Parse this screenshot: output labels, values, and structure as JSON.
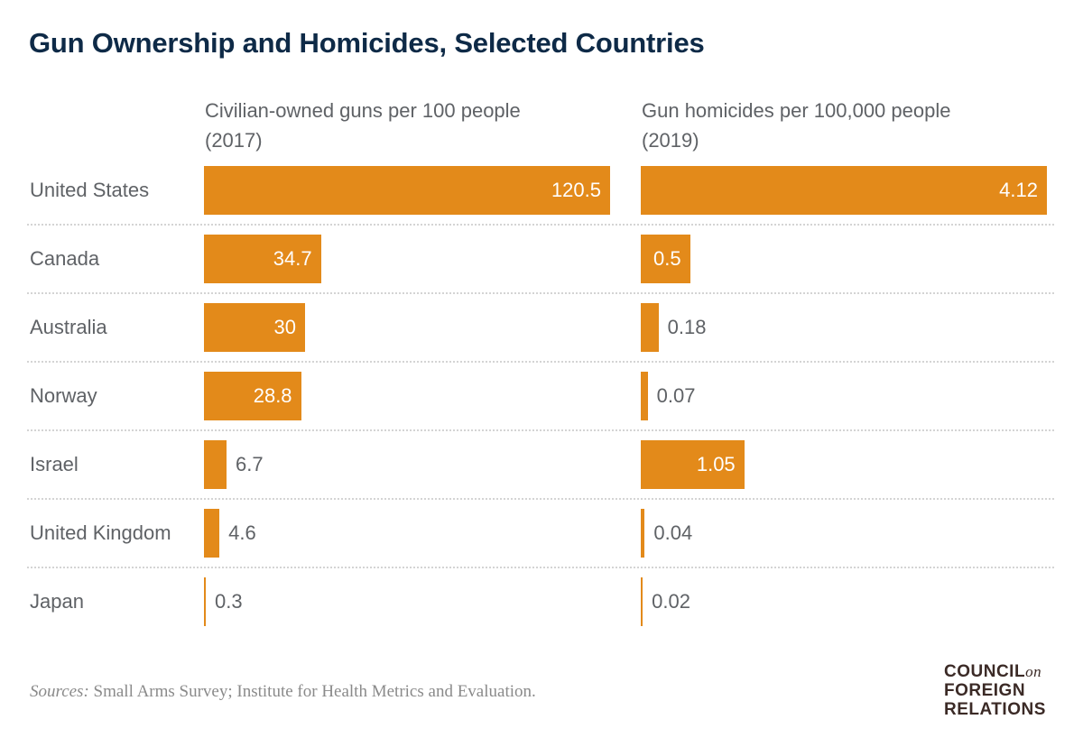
{
  "chart_data": [
    {
      "type": "bar",
      "orientation": "horizontal",
      "title": "Gun Ownership and Homicides, Selected Countries",
      "xlabel": "Civilian-owned guns per 100 people",
      "xlabel_year": "(2017)",
      "categories": [
        "United States",
        "Canada",
        "Australia",
        "Norway",
        "Israel",
        "United Kingdom",
        "Japan"
      ],
      "values": [
        120.5,
        34.7,
        30,
        28.8,
        6.7,
        4.6,
        0.3
      ],
      "labels": [
        "120.5",
        "34.7",
        "30",
        "28.8",
        "6.7",
        "4.6",
        "0.3"
      ],
      "xlim": [
        0,
        120.5
      ],
      "grid": false
    },
    {
      "type": "bar",
      "orientation": "horizontal",
      "xlabel": "Gun homicides per 100,000 people",
      "xlabel_year": "(2019)",
      "categories": [
        "United States",
        "Canada",
        "Australia",
        "Norway",
        "Israel",
        "United Kingdom",
        "Japan"
      ],
      "values": [
        4.12,
        0.5,
        0.18,
        0.07,
        1.05,
        0.04,
        0.02
      ],
      "labels": [
        "4.12",
        "0.5",
        "0.18",
        "0.07",
        "1.05",
        "0.04",
        "0.02"
      ],
      "xlim": [
        0,
        4.12
      ],
      "grid": false
    }
  ],
  "colors": {
    "bar": "#e38a1a",
    "title": "#0e2a47",
    "text": "#5f6266"
  },
  "footer": {
    "sources_label": "Sources:",
    "sources_text": "Small Arms Survey; Institute for Health Metrics and Evaluation.",
    "logo": [
      "COUNCIL",
      "on",
      "FOREIGN",
      "RELATIONS"
    ]
  }
}
